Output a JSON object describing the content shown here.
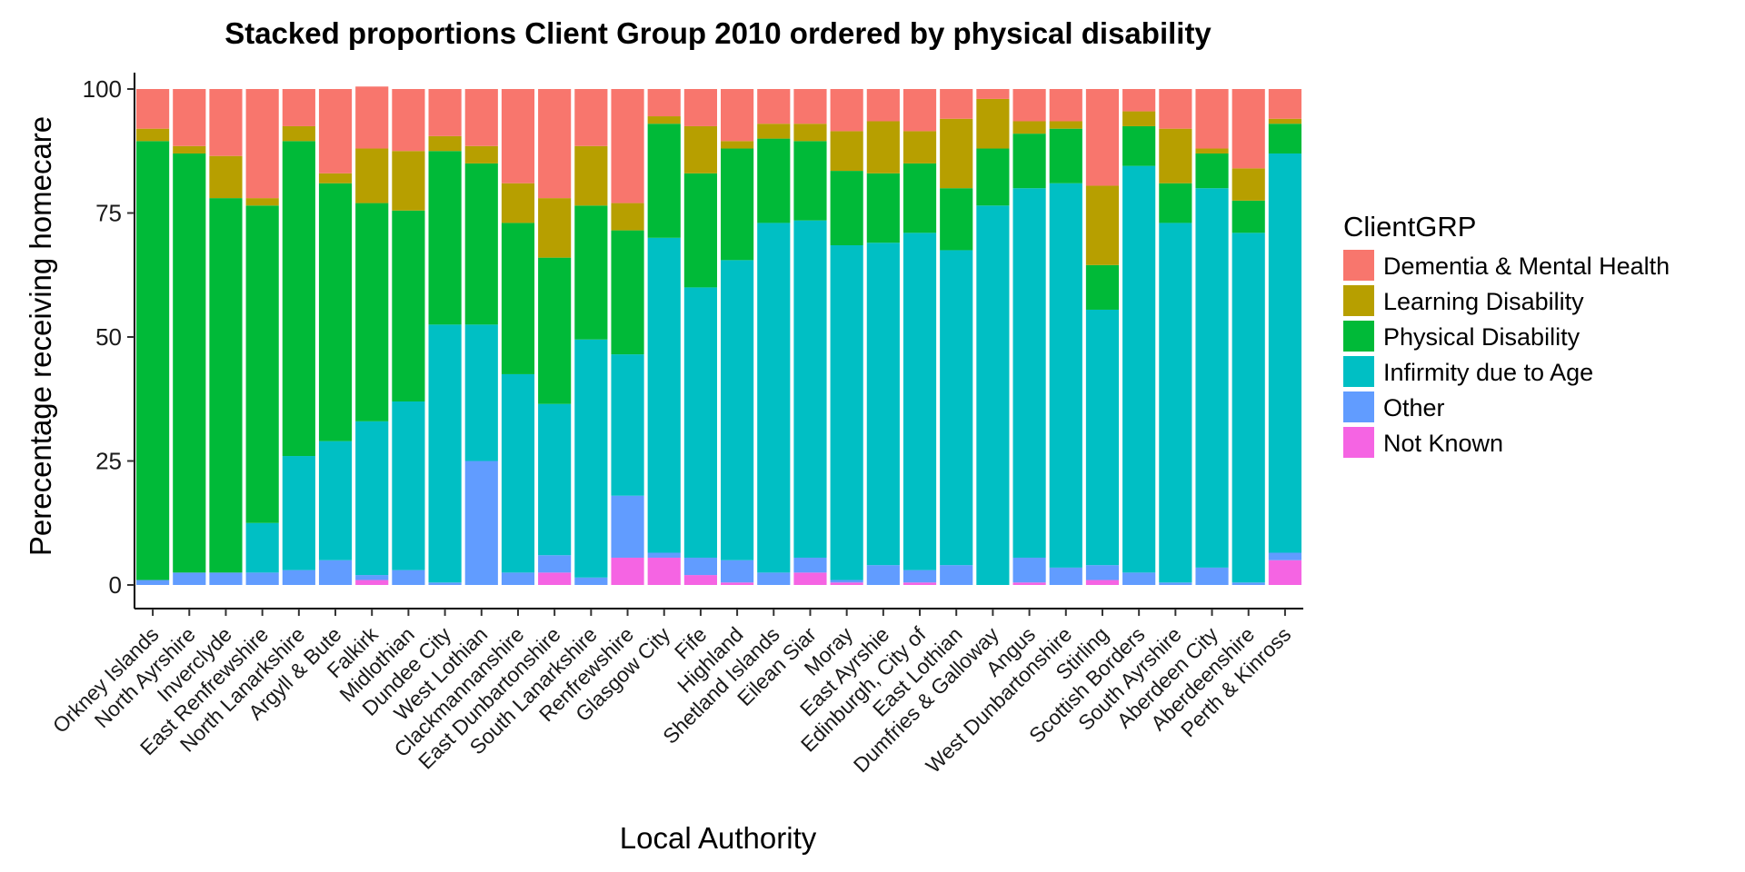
{
  "chart_data": {
    "type": "bar",
    "stacked": true,
    "title": "Stacked proportions Client Group 2010 ordered by physical disability",
    "xlabel": "Local Authority",
    "ylabel": "Perecentage receiving homecare",
    "ylim": [
      0,
      100
    ],
    "yticks": [
      0,
      25,
      50,
      75,
      100
    ],
    "grid": false,
    "legend_title": "ClientGRP",
    "legend_position": "right",
    "categories": [
      "Orkney Islands",
      "North Ayrshire",
      "Inverclyde",
      "East Renfrewshire",
      "North Lanarkshire",
      "Argyll & Bute",
      "Falkirk",
      "Midlothian",
      "Dundee City",
      "West Lothian",
      "Clackmannanshire",
      "East Dunbartonshire",
      "South Lanarkshire",
      "Renfrewshire",
      "Glasgow City",
      "Fife",
      "Highland",
      "Shetland Islands",
      "Eilean Siar",
      "Moray",
      "East Ayrshie",
      "Edinburgh, City of",
      "East Lothian",
      "Dumfries & Galloway",
      "Angus",
      "West Dunbartonshire",
      "Stirling",
      "Scottish Borders",
      "South Ayrshire",
      "Aberdeen City",
      "Aberdeenshire",
      "Perth & Kinross"
    ],
    "series": [
      {
        "name": "Not Known",
        "color": "#F564E3",
        "values": [
          0,
          0,
          0,
          0,
          0,
          0,
          1,
          0,
          0,
          0,
          0,
          2.5,
          0,
          5.5,
          5.5,
          2,
          0.5,
          0,
          2.5,
          0.5,
          0,
          0.5,
          0,
          0,
          0.5,
          0,
          1,
          0,
          0,
          0,
          0,
          5
        ]
      },
      {
        "name": "Other",
        "color": "#619CFF",
        "values": [
          1,
          2.5,
          2.5,
          2.5,
          3,
          5,
          1,
          3,
          0.5,
          25,
          2.5,
          3.5,
          1.5,
          12.5,
          1,
          3.5,
          4.5,
          2.5,
          3,
          0.5,
          4,
          2.5,
          4,
          0,
          5,
          3.5,
          3,
          2.5,
          0.5,
          3.5,
          0.5,
          1.5
        ]
      },
      {
        "name": "Infirmity due to Age",
        "color": "#00BFC4",
        "values": [
          0,
          0,
          0,
          10,
          23,
          24,
          31,
          34,
          52,
          27.5,
          40,
          30.5,
          48,
          28.5,
          63.5,
          54.5,
          60.5,
          70.5,
          68,
          67.5,
          65,
          68,
          63.5,
          76.5,
          74.5,
          77.5,
          51.5,
          82,
          72.5,
          76.5,
          70.5,
          80.5
        ]
      },
      {
        "name": "Physical Disability",
        "color": "#00BA38",
        "values": [
          88.5,
          84.5,
          75.5,
          64,
          63.5,
          52,
          44,
          38.5,
          35,
          32.5,
          30.5,
          29.5,
          27,
          25,
          23,
          23,
          22.5,
          17,
          16,
          15,
          14,
          14,
          12.5,
          11.5,
          11,
          11,
          9,
          8,
          8,
          7,
          6.5,
          6
        ]
      },
      {
        "name": "Learning Disability",
        "color": "#B79F00",
        "values": [
          2.5,
          1.5,
          8.5,
          1.5,
          3,
          2,
          11,
          12,
          3,
          3.5,
          8,
          12,
          12,
          5.5,
          1.5,
          9.5,
          1.5,
          3,
          3.5,
          8,
          10.5,
          6.5,
          14,
          10,
          2.5,
          1.5,
          16,
          3,
          11,
          1,
          6.5,
          1
        ]
      },
      {
        "name": "Dementia & Mental Health",
        "color": "#F8766D",
        "values": [
          8,
          11.5,
          13.5,
          22,
          7.5,
          17,
          12.5,
          12.5,
          9.5,
          11.5,
          19,
          22,
          11.5,
          23,
          5.5,
          7.5,
          10.5,
          7,
          7,
          8.5,
          6.5,
          8.5,
          6,
          2,
          6.5,
          6.5,
          19.5,
          4.5,
          8,
          12,
          16,
          6
        ]
      }
    ]
  }
}
